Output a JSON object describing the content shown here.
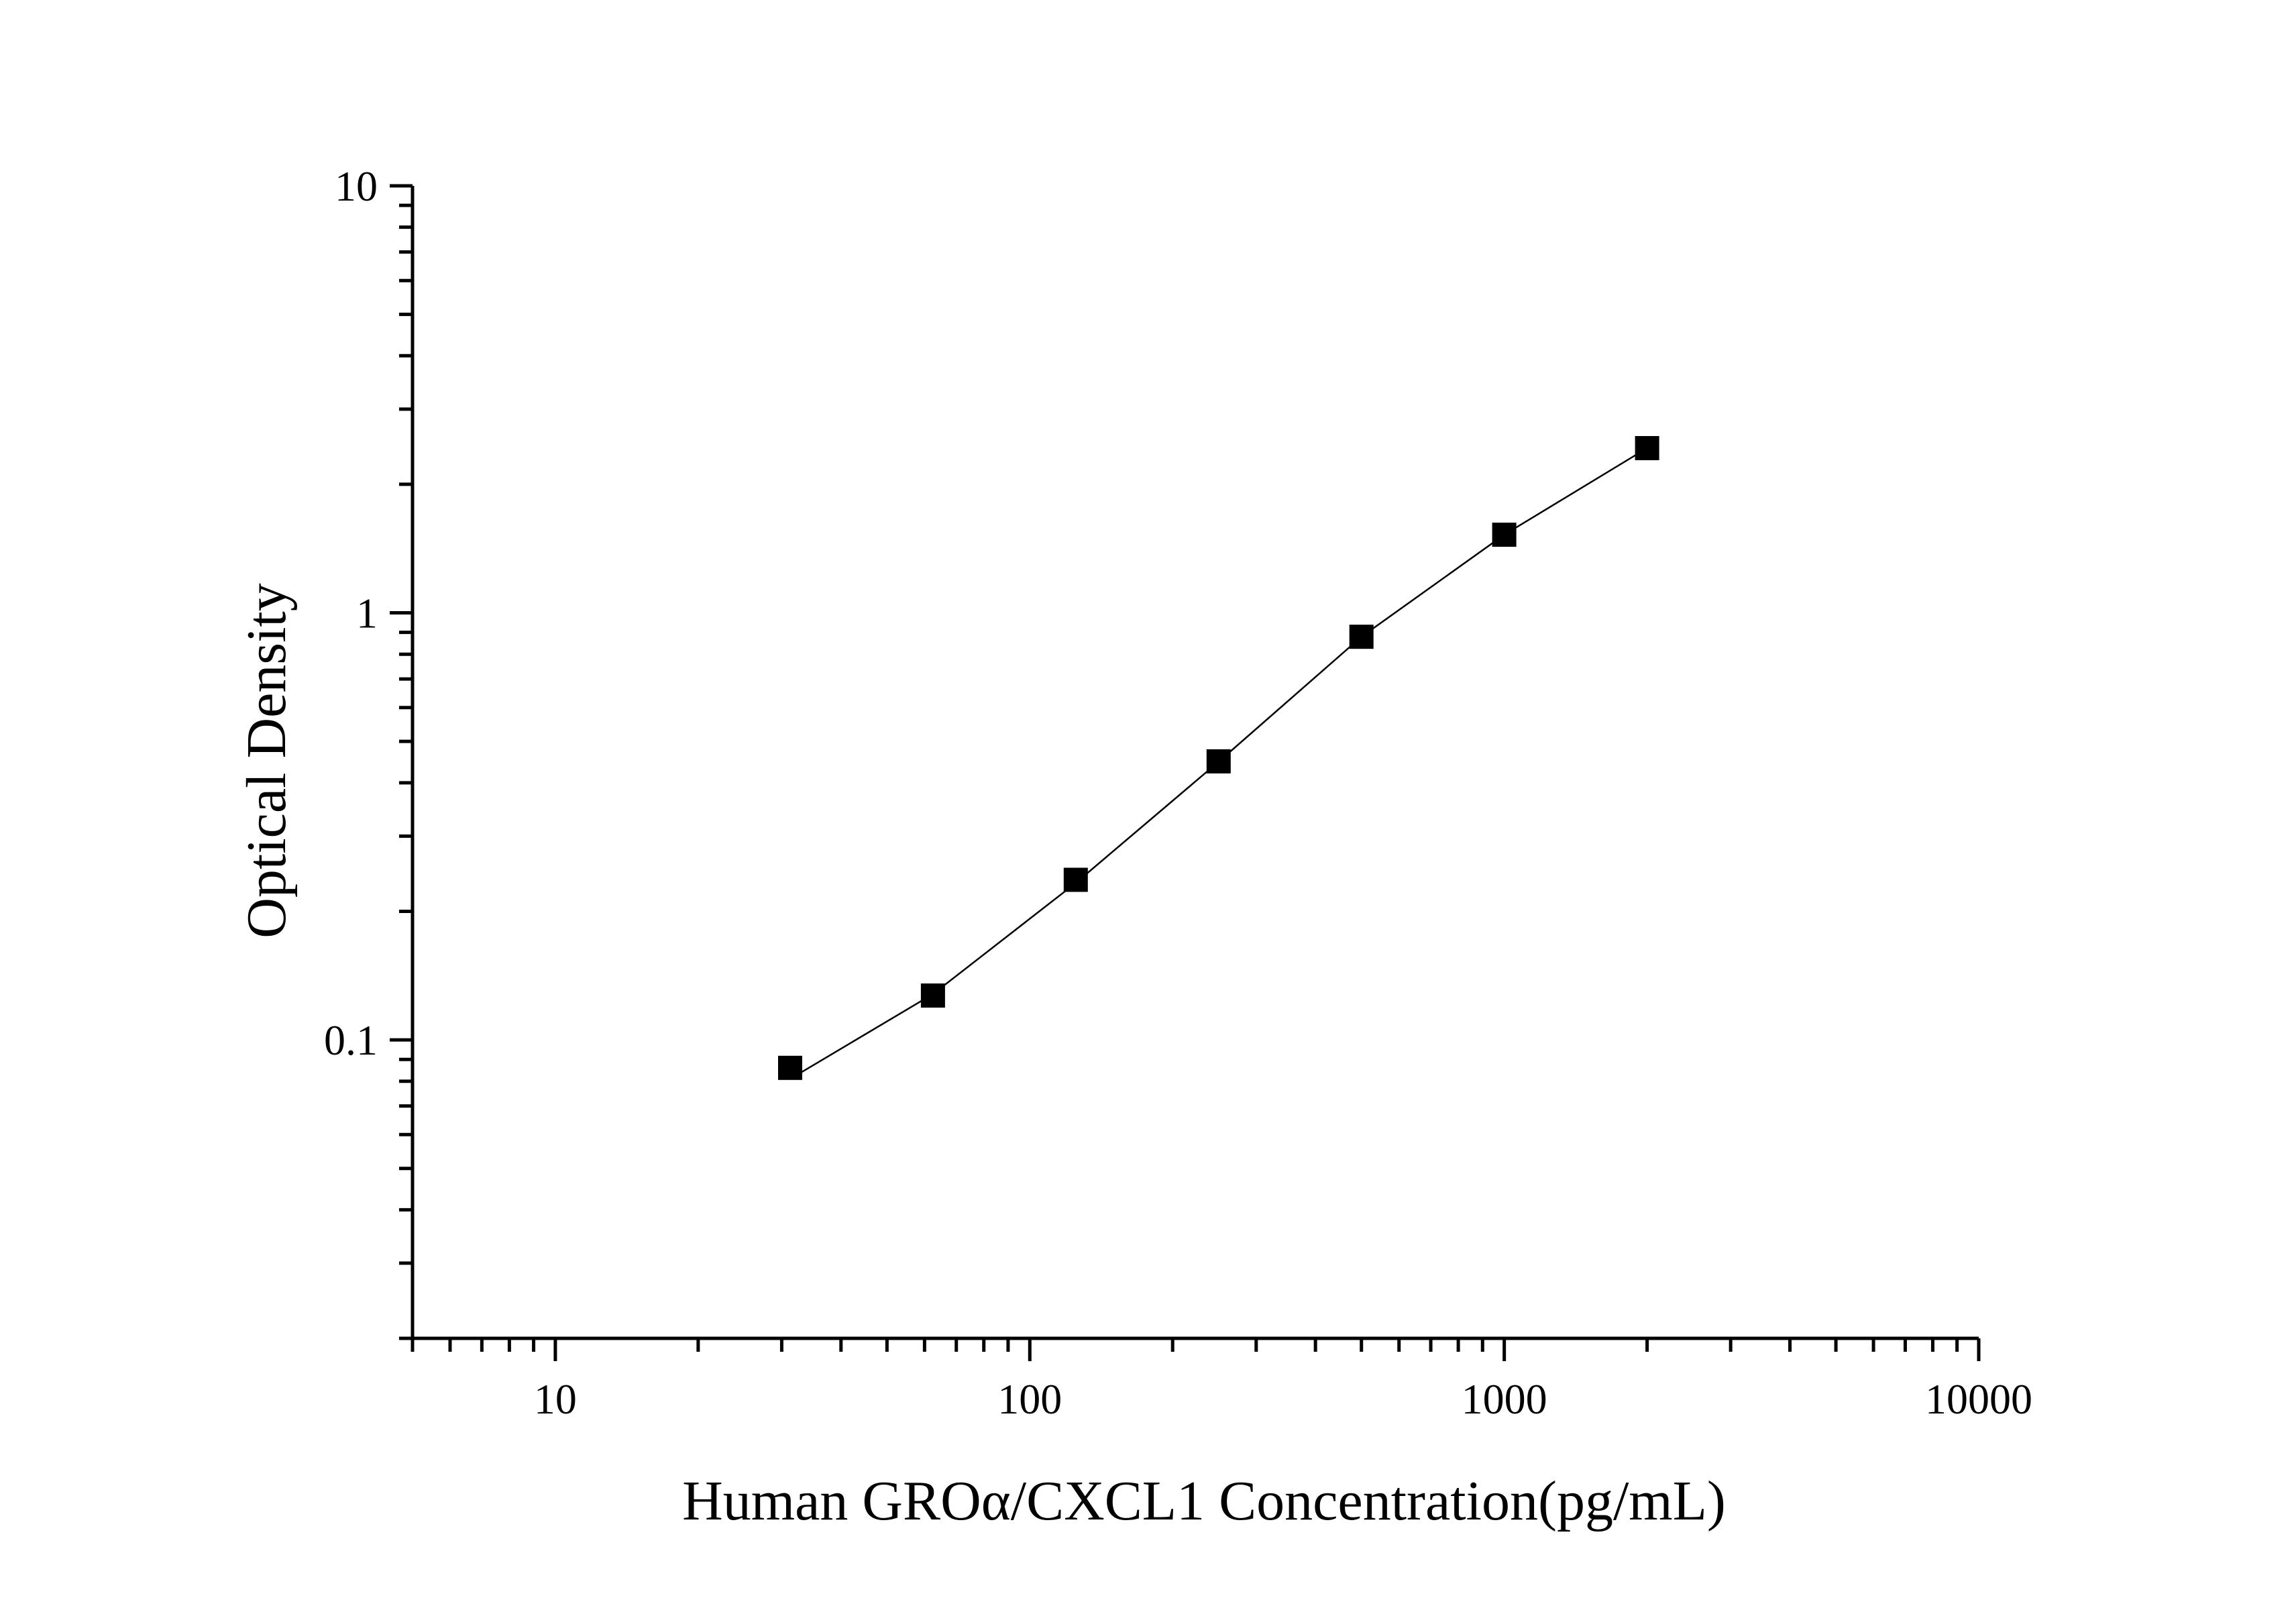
{
  "chart_data": {
    "type": "scatter",
    "xlabel": "Human GROα/CXCL1  Concentration(pg/mL)",
    "ylabel": "Optical Density",
    "x_scale": "log",
    "y_scale": "log",
    "xlim": [
      5,
      10000
    ],
    "ylim": [
      0.02,
      10
    ],
    "x_ticks": [
      10,
      100,
      1000,
      10000
    ],
    "x_tick_labels": [
      "10",
      "100",
      "1000",
      "10000"
    ],
    "y_ticks": [
      0.1,
      1,
      10
    ],
    "y_tick_labels": [
      "0.1",
      "1",
      "10"
    ],
    "grid": false,
    "series": [
      {
        "marker": "square",
        "color": "#000000",
        "x": [
          31.25,
          62.5,
          125,
          250,
          500,
          1000,
          2000
        ],
        "y": [
          0.086,
          0.127,
          0.237,
          0.449,
          0.879,
          1.524,
          2.431
        ]
      }
    ],
    "fit_curve": {
      "x": [
        31.25,
        62.5,
        125,
        250,
        500,
        1000,
        2000
      ],
      "y": [
        0.081,
        0.128,
        0.233,
        0.448,
        0.879,
        1.524,
        2.431
      ]
    }
  }
}
